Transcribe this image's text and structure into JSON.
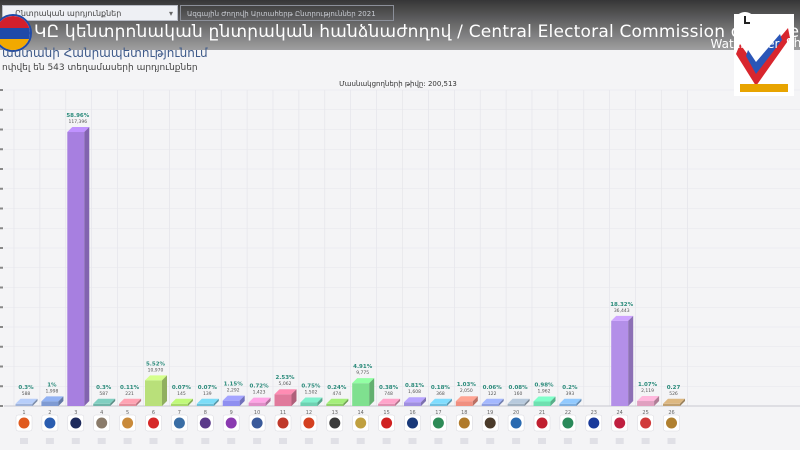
{
  "header": {
    "title": "ԿԸ կենտրոնական ընտրական հանձնաժողով / Central Electoral Commission of Armeni...",
    "dropdown_label": "Ընտրական արդյունքներ",
    "filter_text": "Ազգային Ժողովի Արտահերթ Ընտրություններ 2021",
    "watch_later": "Watch later",
    "share": "Sh",
    "heading": "աստանի Հանրապետությունում",
    "subheading": "ոփվել են 543 տեղամասերի արդյունքներ"
  },
  "chart_data": {
    "type": "bar",
    "title": "Մասնակցողների թիվը: 200,513",
    "categories": [
      "1",
      "2",
      "3",
      "4",
      "5",
      "6",
      "7",
      "8",
      "9",
      "10",
      "11",
      "12",
      "13",
      "14",
      "15",
      "16",
      "17",
      "18",
      "19",
      "20",
      "21",
      "22",
      "23",
      "24",
      "25",
      "26"
    ],
    "values": [
      0.3,
      1,
      58.96,
      0.3,
      0.11,
      5.52,
      0.07,
      0.07,
      1.15,
      0.72,
      2.53,
      0.75,
      0.24,
      4.91,
      0.38,
      0.81,
      0.18,
      1.03,
      0.06,
      0.08,
      0.98,
      0.2,
      0,
      18.32,
      1.07,
      0.27
    ],
    "value_labels": [
      "0.3%",
      "1%",
      "58.96%",
      "0.3%",
      "0.11%",
      "5.52%",
      "0.07%",
      "0.07%",
      "1.15%",
      "0.72%",
      "2.53%",
      "0.75%",
      "0.24%",
      "4.91%",
      "0.38%",
      "0.81%",
      "0.18%",
      "1.03%",
      "0.06%",
      "0.08%",
      "0.98%",
      "0.2%",
      "",
      "18.32%",
      "1.07%",
      "0.27"
    ],
    "count_labels": [
      "588",
      "1,998",
      "117,396",
      "587",
      "221",
      "10,970",
      "145",
      "139",
      "2,292",
      "1,423",
      "5,062",
      "1,502",
      "474",
      "9,775",
      "748",
      "1,608",
      "368",
      "2,050",
      "122",
      "160",
      "1,962",
      "393",
      "",
      "36,443",
      "2,119",
      "526"
    ],
    "colors": [
      "#9fb3d9",
      "#7f9bd3",
      "#a77fe0",
      "#6fb4a8",
      "#e48e9c",
      "#b9e07a",
      "#a8d96a",
      "#6cc0d8",
      "#8f8ff0",
      "#e08fc8",
      "#e07a9c",
      "#6fd1b2",
      "#8fd06a",
      "#7fe08f",
      "#e08fb0",
      "#a08fe0",
      "#6fc0e0",
      "#f08f80",
      "#8fa0e0",
      "#a0b0c0",
      "#6fe0b0",
      "#7fb0e0",
      "#8fb0d0",
      "#b38fe8",
      "#e0a0c0",
      "#c0a070"
    ],
    "ylim": [
      0,
      68
    ],
    "grid": true,
    "logo_colors": [
      "#e05a1e",
      "#2a5db0",
      "#1d2a5c",
      "#8a7b6a",
      "#c98a3a",
      "#d62828",
      "#3a6ea5",
      "#5b3a8a",
      "#8a3ab0",
      "#3a5a9a",
      "#c0392b",
      "#d44020",
      "#3a3a3a",
      "#c0a040",
      "#d02020",
      "#1a3a7a",
      "#2e8b57",
      "#b07a2a",
      "#4a3a2a",
      "#2a6ab0",
      "#c02030",
      "#2a8a5a",
      "#1a3a9a",
      "#c02040",
      "#d03a3a",
      "#b08030"
    ]
  }
}
